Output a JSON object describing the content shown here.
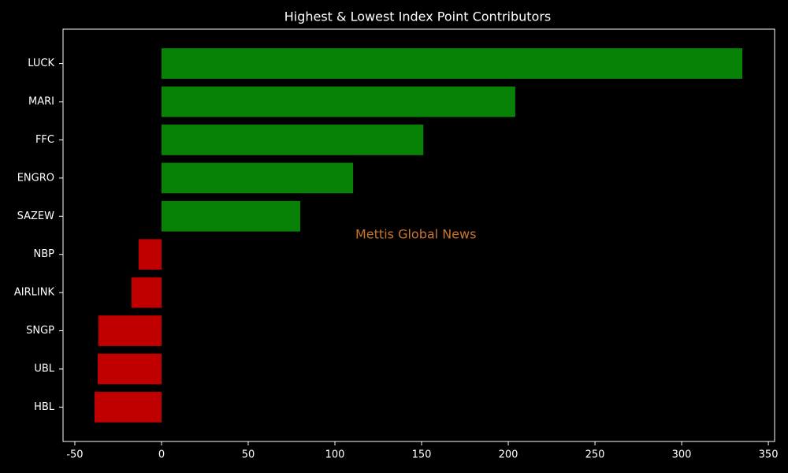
{
  "chart_data": {
    "type": "barh",
    "title": "Highest & Lowest Index Point Contributors",
    "categories": [
      "LUCK",
      "MARI",
      "FFC",
      "ENGRO",
      "SAZEW",
      "NBP",
      "AIRLINK",
      "SNGP",
      "UBL",
      "HBL"
    ],
    "values": [
      335,
      204,
      151,
      110.5,
      80,
      -13.2,
      -17.3,
      -36.4,
      -36.8,
      -38.6
    ],
    "colors": [
      "#078207",
      "#078207",
      "#078207",
      "#078207",
      "#078207",
      "#c00000",
      "#c00000",
      "#c00000",
      "#c00000",
      "#c00000"
    ],
    "xlim": [
      -56.8,
      353.6
    ],
    "xticks": [
      -50,
      0,
      50,
      100,
      150,
      200,
      250,
      300,
      350
    ],
    "annotation": "Mettis Global News",
    "annotation_color": "#c8742c"
  }
}
